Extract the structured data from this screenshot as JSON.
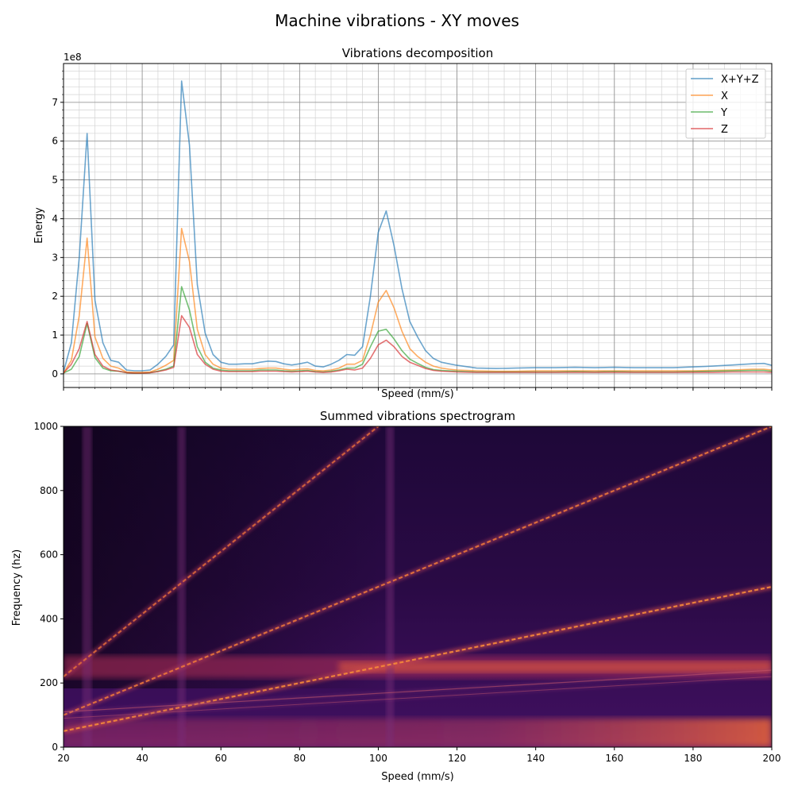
{
  "figure": {
    "title": "Machine vibrations - XY moves"
  },
  "chart_data": [
    {
      "type": "line",
      "title": "Vibrations decomposition",
      "xlabel": "Speed (mm/s)",
      "ylabel": "Energy",
      "offset_label": "1e8",
      "xlim": [
        20,
        200
      ],
      "ylim": [
        -0.35,
        8.0
      ],
      "y_unit_scale": 100000000,
      "yticks": [
        0,
        1,
        2,
        3,
        4,
        5,
        6,
        7
      ],
      "grid": true,
      "legend_position": "top-right",
      "x": [
        20,
        22,
        24,
        26,
        28,
        30,
        32,
        34,
        36,
        38,
        40,
        42,
        44,
        46,
        48,
        50,
        52,
        54,
        56,
        58,
        60,
        62,
        64,
        66,
        68,
        70,
        72,
        74,
        76,
        78,
        80,
        82,
        84,
        86,
        88,
        90,
        92,
        94,
        96,
        98,
        100,
        102,
        104,
        106,
        108,
        110,
        112,
        114,
        116,
        118,
        120,
        125,
        130,
        135,
        140,
        145,
        150,
        155,
        160,
        165,
        170,
        175,
        180,
        185,
        190,
        195,
        198,
        200
      ],
      "series": [
        {
          "name": "X+Y+Z",
          "color": "#1f77b4",
          "values": [
            0.05,
            0.8,
            3.0,
            6.2,
            1.9,
            0.8,
            0.35,
            0.3,
            0.1,
            0.08,
            0.08,
            0.1,
            0.25,
            0.45,
            0.75,
            7.55,
            5.9,
            2.3,
            1.05,
            0.5,
            0.3,
            0.25,
            0.25,
            0.26,
            0.26,
            0.3,
            0.33,
            0.32,
            0.26,
            0.23,
            0.26,
            0.3,
            0.2,
            0.18,
            0.25,
            0.35,
            0.5,
            0.48,
            0.7,
            2.0,
            3.65,
            4.2,
            3.3,
            2.2,
            1.35,
            0.95,
            0.6,
            0.4,
            0.3,
            0.26,
            0.22,
            0.15,
            0.14,
            0.15,
            0.16,
            0.16,
            0.17,
            0.16,
            0.17,
            0.16,
            0.16,
            0.16,
            0.18,
            0.2,
            0.23,
            0.26,
            0.27,
            0.22
          ]
        },
        {
          "name": "X",
          "color": "#ff7f0e",
          "values": [
            0.02,
            0.35,
            1.5,
            3.5,
            0.95,
            0.4,
            0.2,
            0.15,
            0.05,
            0.04,
            0.04,
            0.05,
            0.12,
            0.22,
            0.35,
            3.75,
            2.9,
            1.15,
            0.5,
            0.25,
            0.15,
            0.12,
            0.12,
            0.12,
            0.12,
            0.14,
            0.15,
            0.15,
            0.12,
            0.1,
            0.12,
            0.13,
            0.09,
            0.08,
            0.1,
            0.15,
            0.25,
            0.25,
            0.35,
            1.0,
            1.85,
            2.15,
            1.7,
            1.1,
            0.65,
            0.45,
            0.3,
            0.2,
            0.15,
            0.12,
            0.1,
            0.08,
            0.07,
            0.07,
            0.08,
            0.08,
            0.08,
            0.08,
            0.08,
            0.08,
            0.08,
            0.08,
            0.08,
            0.09,
            0.1,
            0.12,
            0.12,
            0.1
          ]
        },
        {
          "name": "Y",
          "color": "#2ca02c",
          "values": [
            0.02,
            0.12,
            0.45,
            1.3,
            0.42,
            0.15,
            0.08,
            0.07,
            0.03,
            0.02,
            0.02,
            0.03,
            0.07,
            0.12,
            0.2,
            2.25,
            1.65,
            0.7,
            0.3,
            0.15,
            0.1,
            0.08,
            0.08,
            0.08,
            0.08,
            0.1,
            0.1,
            0.1,
            0.08,
            0.07,
            0.08,
            0.09,
            0.06,
            0.05,
            0.07,
            0.1,
            0.15,
            0.15,
            0.25,
            0.7,
            1.1,
            1.15,
            0.9,
            0.6,
            0.38,
            0.27,
            0.17,
            0.11,
            0.09,
            0.08,
            0.07,
            0.05,
            0.05,
            0.05,
            0.05,
            0.05,
            0.06,
            0.05,
            0.06,
            0.05,
            0.05,
            0.05,
            0.06,
            0.07,
            0.08,
            0.09,
            0.09,
            0.07
          ]
        },
        {
          "name": "Z",
          "color": "#d62728",
          "values": [
            0.02,
            0.25,
            0.65,
            1.35,
            0.5,
            0.2,
            0.1,
            0.07,
            0.03,
            0.02,
            0.02,
            0.03,
            0.06,
            0.1,
            0.17,
            1.5,
            1.2,
            0.5,
            0.25,
            0.12,
            0.07,
            0.06,
            0.06,
            0.06,
            0.06,
            0.07,
            0.07,
            0.07,
            0.06,
            0.05,
            0.06,
            0.07,
            0.05,
            0.04,
            0.05,
            0.08,
            0.12,
            0.1,
            0.15,
            0.4,
            0.75,
            0.87,
            0.7,
            0.45,
            0.3,
            0.22,
            0.14,
            0.09,
            0.07,
            0.06,
            0.05,
            0.04,
            0.04,
            0.04,
            0.04,
            0.04,
            0.04,
            0.04,
            0.04,
            0.04,
            0.04,
            0.04,
            0.04,
            0.04,
            0.05,
            0.05,
            0.05,
            0.04
          ]
        }
      ]
    },
    {
      "type": "heatmap",
      "title": "Summed vibrations spectrogram",
      "xlabel": "Speed (mm/s)",
      "ylabel": "Frequency (hz)",
      "xlim": [
        20,
        200
      ],
      "ylim": [
        0,
        1000
      ],
      "xticks": [
        20,
        40,
        60,
        80,
        100,
        120,
        140,
        160,
        180,
        200
      ],
      "yticks": [
        0,
        200,
        400,
        600,
        800,
        1000
      ],
      "colormap": "inferno",
      "resonance_band_hz": 250,
      "lines": [
        {
          "from": [
            20,
            50
          ],
          "to": [
            200,
            500
          ]
        },
        {
          "from": [
            20,
            100
          ],
          "to": [
            200,
            1000
          ]
        },
        {
          "from": [
            20,
            220
          ],
          "to": [
            100,
            1000
          ]
        },
        {
          "from": [
            20,
            110
          ],
          "to": [
            200,
            240
          ]
        },
        {
          "from": [
            20,
            90
          ],
          "to": [
            200,
            220
          ]
        }
      ]
    }
  ]
}
